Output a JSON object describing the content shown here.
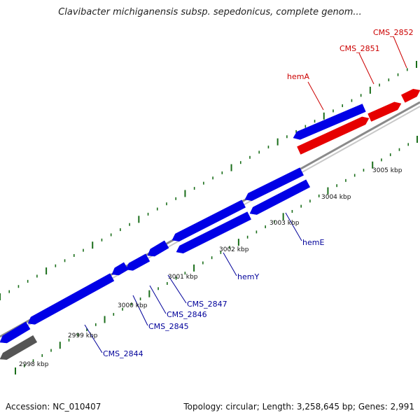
{
  "title": "Clavibacter michiganensis subsp. sepedonicus, complete genom...",
  "footer": {
    "accession": "Accession: NC_010407",
    "topology": "Topology: circular; Length: 3,258,645 bp; Genes: 2,991"
  },
  "colors": {
    "forward_gene": "#e60000",
    "reverse_gene": "#0000e6",
    "other_feature": "#555555",
    "backbone": "#8a8a8a",
    "tick": "#1a6e1a",
    "forward_label": "#cc0000",
    "reverse_label": "#00009a"
  },
  "ruler_labels": [
    "2998 kbp",
    "2999 kbp",
    "3000 kbp",
    "3001 kbp",
    "3002 kbp",
    "3003 kbp",
    "3004 kbp",
    "3005 kbp"
  ],
  "gene_labels": {
    "forward": [
      "hemA",
      "CMS_2851",
      "CMS_2852"
    ],
    "reverse": [
      "CMS_2844",
      "CMS_2845",
      "CMS_2846",
      "CMS_2847",
      "hemY",
      "hemE"
    ]
  }
}
